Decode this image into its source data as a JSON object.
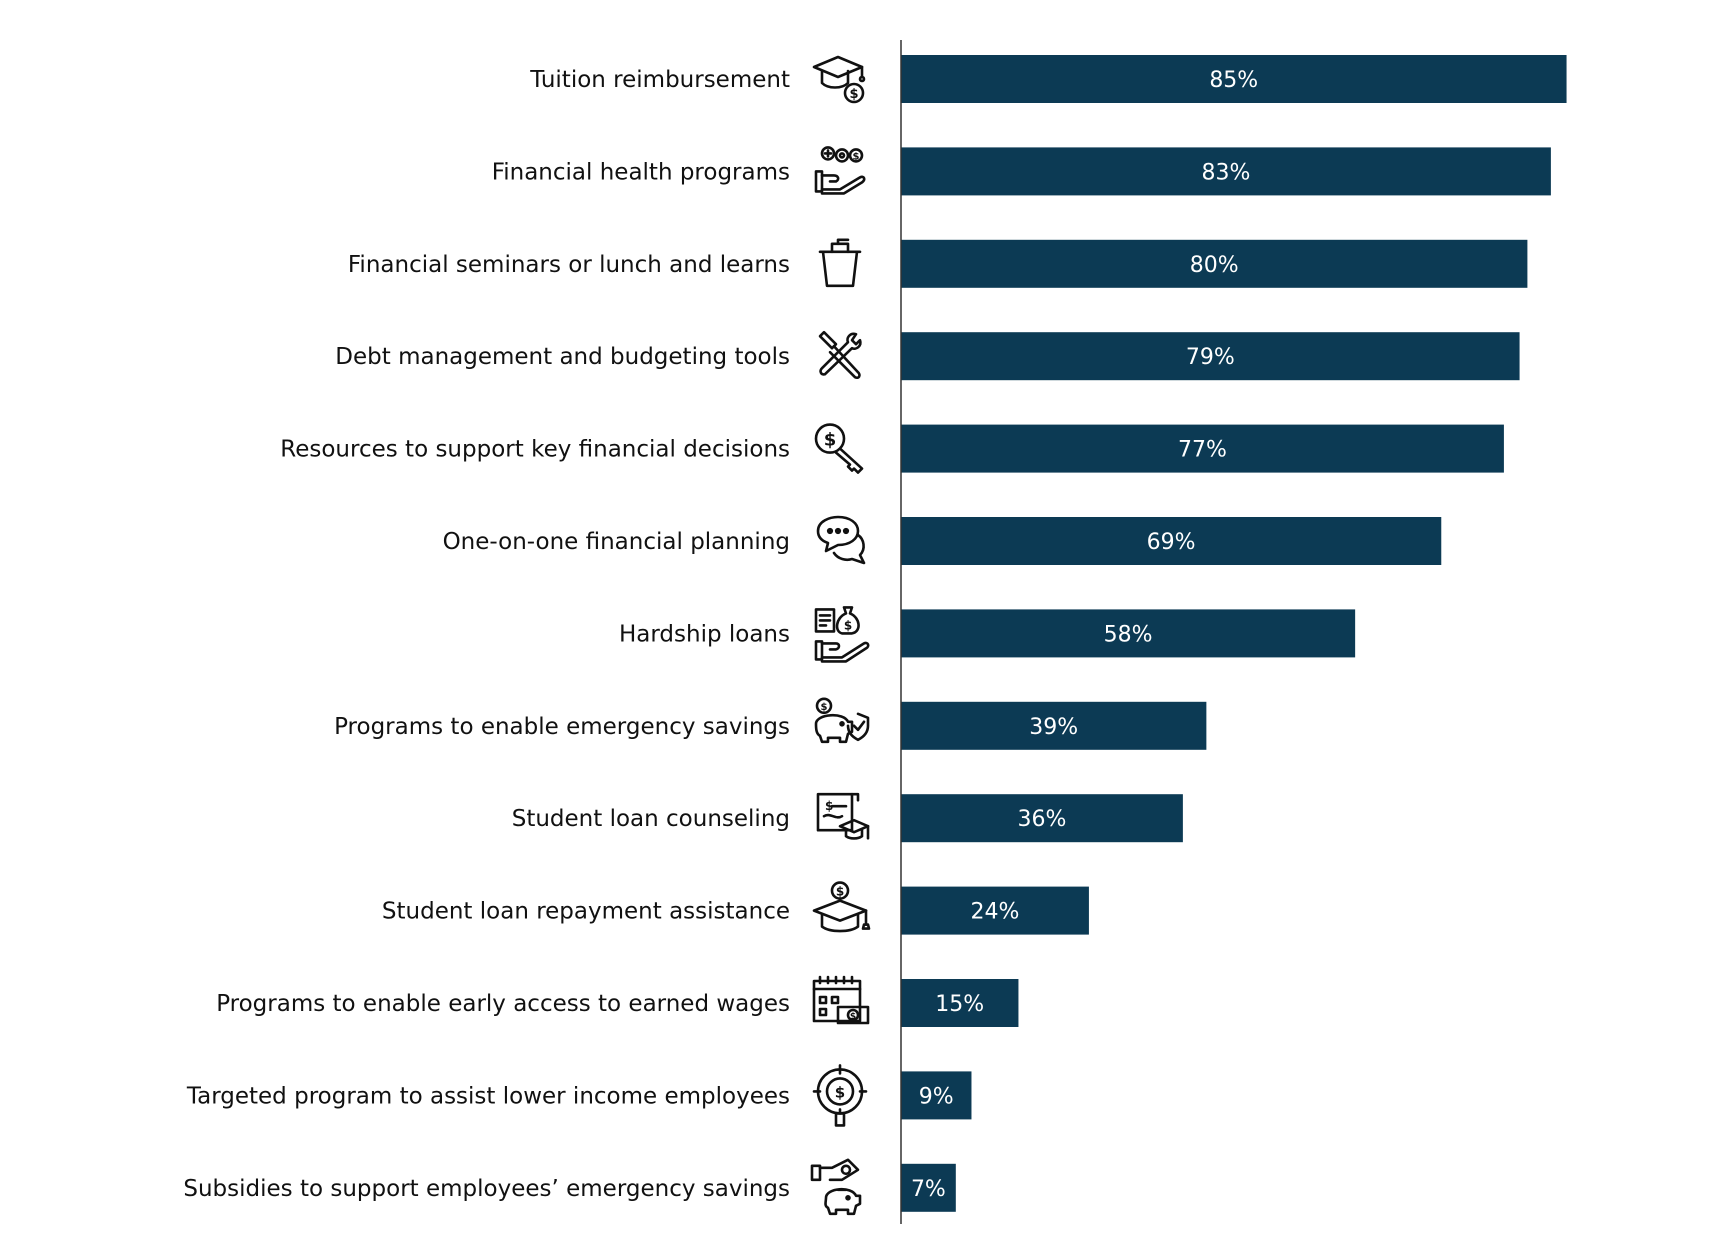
{
  "chart_data": {
    "type": "bar",
    "orientation": "horizontal",
    "bar_color": "#0c3a54",
    "value_suffix": "%",
    "xlim": [
      0,
      100
    ],
    "grid": false,
    "categories": [
      "Tuition reimbursement",
      "Financial health programs",
      "Financial seminars or lunch and learns",
      "Debt management and budgeting tools",
      "Resources to support key financial decisions",
      "One-on-one financial planning",
      "Hardship loans",
      "Programs to enable emergency savings",
      "Student loan counseling",
      "Student loan repayment assistance",
      "Programs to enable early access to earned wages",
      "Targeted program to assist lower income employees",
      "Subsidies to support employees’ emergency savings"
    ],
    "values": [
      85,
      83,
      80,
      79,
      77,
      69,
      58,
      39,
      36,
      24,
      15,
      9,
      7
    ],
    "icons": [
      "graduation-cap-dollar-icon",
      "hand-gears-dollar-icon",
      "bucket-icon",
      "wrench-screwdriver-icon",
      "dollar-key-icon",
      "chat-bubbles-icon",
      "hand-money-bag-icon",
      "piggy-bank-shield-icon",
      "student-loan-document-icon",
      "cap-dollar-coin-icon",
      "calendar-cash-icon",
      "target-dollar-icon",
      "hand-cash-piggy-icon"
    ]
  }
}
